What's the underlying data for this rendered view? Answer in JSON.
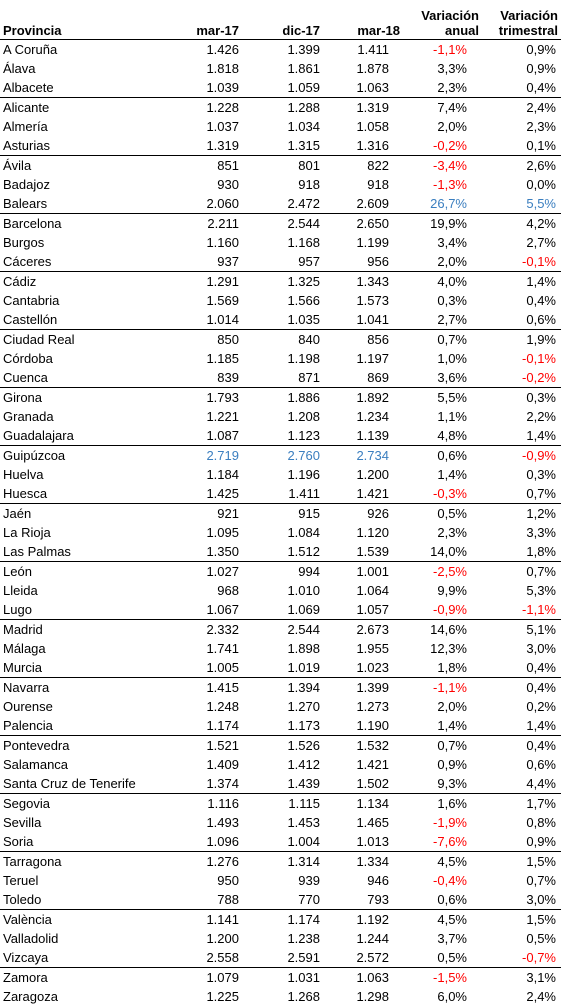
{
  "headers": {
    "provincia": "Provincia",
    "mar17": "mar-17",
    "dic17": "dic-17",
    "mar18": "mar-18",
    "anual_1": "Variación",
    "anual_2": "anual",
    "trim_1": "Variación",
    "trim_2": "trimestral"
  },
  "colors": {
    "negative": "#ff0000",
    "highlight": "#3a7ebf"
  },
  "rows": [
    {
      "name": "A Coruña",
      "m17": "1.426",
      "d17": "1.399",
      "m18": "1.411",
      "anual": "-1,1%",
      "trim": "0,9%",
      "group_start": true
    },
    {
      "name": "Álava",
      "m17": "1.818",
      "d17": "1.861",
      "m18": "1.878",
      "anual": "3,3%",
      "trim": "0,9%"
    },
    {
      "name": "Albacete",
      "m17": "1.039",
      "d17": "1.059",
      "m18": "1.063",
      "anual": "2,3%",
      "trim": "0,4%"
    },
    {
      "name": "Alicante",
      "m17": "1.228",
      "d17": "1.288",
      "m18": "1.319",
      "anual": "7,4%",
      "trim": "2,4%",
      "group_start": true
    },
    {
      "name": "Almería",
      "m17": "1.037",
      "d17": "1.034",
      "m18": "1.058",
      "anual": "2,0%",
      "trim": "2,3%"
    },
    {
      "name": "Asturias",
      "m17": "1.319",
      "d17": "1.315",
      "m18": "1.316",
      "anual": "-0,2%",
      "trim": "0,1%"
    },
    {
      "name": "Ávila",
      "m17": "851",
      "d17": "801",
      "m18": "822",
      "anual": "-3,4%",
      "trim": "2,6%",
      "group_start": true
    },
    {
      "name": "Badajoz",
      "m17": "930",
      "d17": "918",
      "m18": "918",
      "anual": "-1,3%",
      "trim": "0,0%"
    },
    {
      "name": "Balears",
      "m17": "2.060",
      "d17": "2.472",
      "m18": "2.609",
      "anual": "26,7%",
      "trim": "5,5%",
      "blue_anual": true,
      "blue_trim": true
    },
    {
      "name": "Barcelona",
      "m17": "2.211",
      "d17": "2.544",
      "m18": "2.650",
      "anual": "19,9%",
      "trim": "4,2%",
      "group_start": true
    },
    {
      "name": "Burgos",
      "m17": "1.160",
      "d17": "1.168",
      "m18": "1.199",
      "anual": "3,4%",
      "trim": "2,7%"
    },
    {
      "name": "Cáceres",
      "m17": "937",
      "d17": "957",
      "m18": "956",
      "anual": "2,0%",
      "trim": "-0,1%"
    },
    {
      "name": "Cádiz",
      "m17": "1.291",
      "d17": "1.325",
      "m18": "1.343",
      "anual": "4,0%",
      "trim": "1,4%",
      "group_start": true
    },
    {
      "name": "Cantabria",
      "m17": "1.569",
      "d17": "1.566",
      "m18": "1.573",
      "anual": "0,3%",
      "trim": "0,4%"
    },
    {
      "name": "Castellón",
      "m17": "1.014",
      "d17": "1.035",
      "m18": "1.041",
      "anual": "2,7%",
      "trim": "0,6%"
    },
    {
      "name": "Ciudad Real",
      "m17": "850",
      "d17": "840",
      "m18": "856",
      "anual": "0,7%",
      "trim": "1,9%",
      "group_start": true
    },
    {
      "name": "Córdoba",
      "m17": "1.185",
      "d17": "1.198",
      "m18": "1.197",
      "anual": "1,0%",
      "trim": "-0,1%"
    },
    {
      "name": "Cuenca",
      "m17": "839",
      "d17": "871",
      "m18": "869",
      "anual": "3,6%",
      "trim": "-0,2%"
    },
    {
      "name": "Girona",
      "m17": "1.793",
      "d17": "1.886",
      "m18": "1.892",
      "anual": "5,5%",
      "trim": "0,3%",
      "group_start": true
    },
    {
      "name": "Granada",
      "m17": "1.221",
      "d17": "1.208",
      "m18": "1.234",
      "anual": "1,1%",
      "trim": "2,2%"
    },
    {
      "name": "Guadalajara",
      "m17": "1.087",
      "d17": "1.123",
      "m18": "1.139",
      "anual": "4,8%",
      "trim": "1,4%"
    },
    {
      "name": "Guipúzcoa",
      "m17": "2.719",
      "d17": "2.760",
      "m18": "2.734",
      "anual": "0,6%",
      "trim": "-0,9%",
      "blue_values": true,
      "group_start": true
    },
    {
      "name": "Huelva",
      "m17": "1.184",
      "d17": "1.196",
      "m18": "1.200",
      "anual": "1,4%",
      "trim": "0,3%"
    },
    {
      "name": "Huesca",
      "m17": "1.425",
      "d17": "1.411",
      "m18": "1.421",
      "anual": "-0,3%",
      "trim": "0,7%"
    },
    {
      "name": "Jaén",
      "m17": "921",
      "d17": "915",
      "m18": "926",
      "anual": "0,5%",
      "trim": "1,2%",
      "group_start": true
    },
    {
      "name": "La Rioja",
      "m17": "1.095",
      "d17": "1.084",
      "m18": "1.120",
      "anual": "2,3%",
      "trim": "3,3%"
    },
    {
      "name": "Las Palmas",
      "m17": "1.350",
      "d17": "1.512",
      "m18": "1.539",
      "anual": "14,0%",
      "trim": "1,8%"
    },
    {
      "name": "León",
      "m17": "1.027",
      "d17": "994",
      "m18": "1.001",
      "anual": "-2,5%",
      "trim": "0,7%",
      "group_start": true
    },
    {
      "name": "Lleida",
      "m17": "968",
      "d17": "1.010",
      "m18": "1.064",
      "anual": "9,9%",
      "trim": "5,3%"
    },
    {
      "name": "Lugo",
      "m17": "1.067",
      "d17": "1.069",
      "m18": "1.057",
      "anual": "-0,9%",
      "trim": "-1,1%"
    },
    {
      "name": "Madrid",
      "m17": "2.332",
      "d17": "2.544",
      "m18": "2.673",
      "anual": "14,6%",
      "trim": "5,1%",
      "group_start": true
    },
    {
      "name": "Málaga",
      "m17": "1.741",
      "d17": "1.898",
      "m18": "1.955",
      "anual": "12,3%",
      "trim": "3,0%"
    },
    {
      "name": "Murcia",
      "m17": "1.005",
      "d17": "1.019",
      "m18": "1.023",
      "anual": "1,8%",
      "trim": "0,4%"
    },
    {
      "name": "Navarra",
      "m17": "1.415",
      "d17": "1.394",
      "m18": "1.399",
      "anual": "-1,1%",
      "trim": "0,4%",
      "group_start": true
    },
    {
      "name": "Ourense",
      "m17": "1.248",
      "d17": "1.270",
      "m18": "1.273",
      "anual": "2,0%",
      "trim": "0,2%"
    },
    {
      "name": "Palencia",
      "m17": "1.174",
      "d17": "1.173",
      "m18": "1.190",
      "anual": "1,4%",
      "trim": "1,4%"
    },
    {
      "name": "Pontevedra",
      "m17": "1.521",
      "d17": "1.526",
      "m18": "1.532",
      "anual": "0,7%",
      "trim": "0,4%",
      "group_start": true
    },
    {
      "name": "Salamanca",
      "m17": "1.409",
      "d17": "1.412",
      "m18": "1.421",
      "anual": "0,9%",
      "trim": "0,6%"
    },
    {
      "name": "Santa Cruz de Tenerife",
      "m17": "1.374",
      "d17": "1.439",
      "m18": "1.502",
      "anual": "9,3%",
      "trim": "4,4%"
    },
    {
      "name": "Segovia",
      "m17": "1.116",
      "d17": "1.115",
      "m18": "1.134",
      "anual": "1,6%",
      "trim": "1,7%",
      "group_start": true
    },
    {
      "name": "Sevilla",
      "m17": "1.493",
      "d17": "1.453",
      "m18": "1.465",
      "anual": "-1,9%",
      "trim": "0,8%"
    },
    {
      "name": "Soria",
      "m17": "1.096",
      "d17": "1.004",
      "m18": "1.013",
      "anual": "-7,6%",
      "trim": "0,9%"
    },
    {
      "name": "Tarragona",
      "m17": "1.276",
      "d17": "1.314",
      "m18": "1.334",
      "anual": "4,5%",
      "trim": "1,5%",
      "group_start": true
    },
    {
      "name": "Teruel",
      "m17": "950",
      "d17": "939",
      "m18": "946",
      "anual": "-0,4%",
      "trim": "0,7%"
    },
    {
      "name": "Toledo",
      "m17": "788",
      "d17": "770",
      "m18": "793",
      "anual": "0,6%",
      "trim": "3,0%"
    },
    {
      "name": "València",
      "m17": "1.141",
      "d17": "1.174",
      "m18": "1.192",
      "anual": "4,5%",
      "trim": "1,5%",
      "group_start": true
    },
    {
      "name": "Valladolid",
      "m17": "1.200",
      "d17": "1.238",
      "m18": "1.244",
      "anual": "3,7%",
      "trim": "0,5%"
    },
    {
      "name": "Vizcaya",
      "m17": "2.558",
      "d17": "2.591",
      "m18": "2.572",
      "anual": "0,5%",
      "trim": "-0,7%"
    },
    {
      "name": "Zamora",
      "m17": "1.079",
      "d17": "1.031",
      "m18": "1.063",
      "anual": "-1,5%",
      "trim": "3,1%",
      "group_start": true
    },
    {
      "name": "Zaragoza",
      "m17": "1.225",
      "d17": "1.268",
      "m18": "1.298",
      "anual": "6,0%",
      "trim": "2,4%"
    }
  ]
}
